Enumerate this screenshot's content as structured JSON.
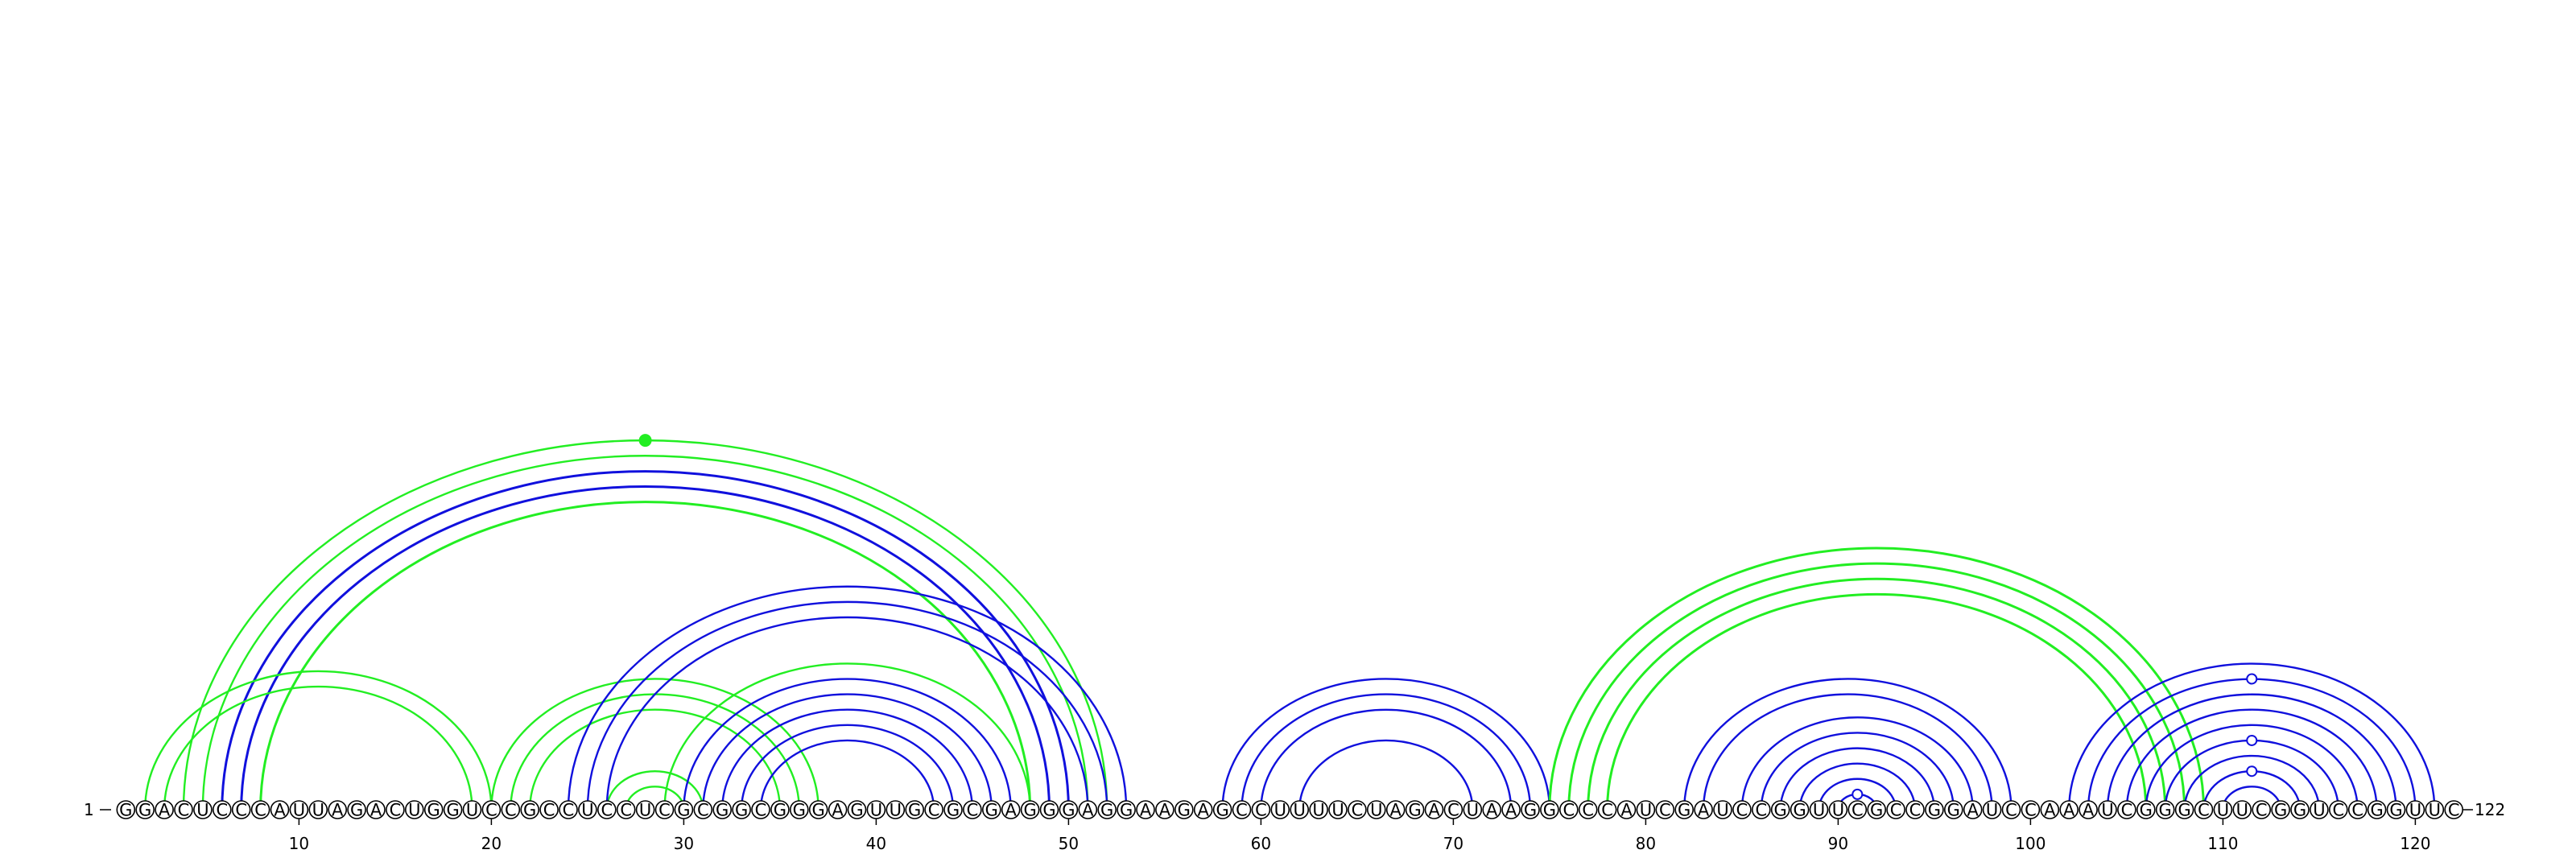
{
  "diagram": {
    "sequence": "GGACUCCCAUUAGACUGGUCCGCCUCCUCGCGGCGGGAGUUGCGCGAGGGAGGAAGAGCCUUUUCUAGACUAAGGCCCAUCGAUCCGGUUCGCCGGAUCCAAAUCGGGCUUCGGUCCGGUUC",
    "start_label": "1",
    "end_label": "122",
    "ticks": [
      "10",
      "20",
      "30",
      "40",
      "50",
      "60",
      "70",
      "80",
      "90",
      "100",
      "110",
      "120"
    ],
    "colors": {
      "green": "#22ee22",
      "blue": "#1010dd"
    },
    "arcs": [
      {
        "i": 4,
        "j": 52,
        "color": "green",
        "w": 2.4
      },
      {
        "i": 5,
        "j": 51,
        "color": "green",
        "w": 2.4
      },
      {
        "i": 6,
        "j": 50,
        "color": "blue",
        "w": 3
      },
      {
        "i": 7,
        "j": 49,
        "color": "blue",
        "w": 3
      },
      {
        "i": 8,
        "j": 48,
        "color": "green",
        "w": 3
      },
      {
        "i": 2,
        "j": 20,
        "color": "green",
        "w": 2.4
      },
      {
        "i": 3,
        "j": 19,
        "color": "green",
        "w": 2.4
      },
      {
        "i": 20,
        "j": 37,
        "color": "green",
        "w": 2.4
      },
      {
        "i": 21,
        "j": 36,
        "color": "green",
        "w": 2.4
      },
      {
        "i": 22,
        "j": 35,
        "color": "green",
        "w": 2.4
      },
      {
        "i": 26,
        "j": 31,
        "color": "green",
        "w": 2.4
      },
      {
        "i": 27,
        "j": 30,
        "color": "green",
        "w": 2.4
      },
      {
        "i": 24,
        "j": 53,
        "color": "blue",
        "w": 2.4
      },
      {
        "i": 25,
        "j": 52,
        "color": "blue",
        "w": 2.4
      },
      {
        "i": 26,
        "j": 51,
        "color": "blue",
        "w": 2.4
      },
      {
        "i": 29,
        "j": 48,
        "color": "green",
        "w": 2.4
      },
      {
        "i": 30,
        "j": 47,
        "color": "blue",
        "w": 2.4
      },
      {
        "i": 31,
        "j": 46,
        "color": "blue",
        "w": 2.4
      },
      {
        "i": 32,
        "j": 45,
        "color": "blue",
        "w": 2.4
      },
      {
        "i": 33,
        "j": 44,
        "color": "blue",
        "w": 2.4
      },
      {
        "i": 34,
        "j": 43,
        "color": "blue",
        "w": 2.4
      },
      {
        "i": 58,
        "j": 75,
        "color": "blue",
        "w": 2.4
      },
      {
        "i": 59,
        "j": 74,
        "color": "blue",
        "w": 2.4
      },
      {
        "i": 60,
        "j": 73,
        "color": "blue",
        "w": 2.4
      },
      {
        "i": 62,
        "j": 71,
        "color": "blue",
        "w": 2.4
      },
      {
        "i": 75,
        "j": 109,
        "color": "green",
        "w": 3
      },
      {
        "i": 76,
        "j": 108,
        "color": "green",
        "w": 3
      },
      {
        "i": 77,
        "j": 107,
        "color": "green",
        "w": 3
      },
      {
        "i": 78,
        "j": 106,
        "color": "green",
        "w": 3
      },
      {
        "i": 82,
        "j": 99,
        "color": "blue",
        "w": 2.4
      },
      {
        "i": 83,
        "j": 98,
        "color": "blue",
        "w": 2.4
      },
      {
        "i": 85,
        "j": 97,
        "color": "blue",
        "w": 2.4
      },
      {
        "i": 86,
        "j": 96,
        "color": "blue",
        "w": 2.4
      },
      {
        "i": 87,
        "j": 95,
        "color": "blue",
        "w": 2.4
      },
      {
        "i": 88,
        "j": 94,
        "color": "blue",
        "w": 2.4
      },
      {
        "i": 89,
        "j": 93,
        "color": "blue",
        "w": 2.4
      },
      {
        "i": 90,
        "j": 92,
        "color": "blue",
        "w": 2.4
      },
      {
        "i": 102,
        "j": 121,
        "color": "blue",
        "w": 2.4
      },
      {
        "i": 103,
        "j": 120,
        "color": "blue",
        "w": 2.4
      },
      {
        "i": 104,
        "j": 119,
        "color": "blue",
        "w": 2.4
      },
      {
        "i": 105,
        "j": 118,
        "color": "blue",
        "w": 2.4
      },
      {
        "i": 106,
        "j": 117,
        "color": "blue",
        "w": 2.4
      },
      {
        "i": 107,
        "j": 116,
        "color": "blue",
        "w": 2.4
      },
      {
        "i": 108,
        "j": 115,
        "color": "blue",
        "w": 2.4
      },
      {
        "i": 109,
        "j": 114,
        "color": "blue",
        "w": 2.4
      },
      {
        "i": 110,
        "j": 113,
        "color": "blue",
        "w": 2.4
      }
    ],
    "markers": [
      {
        "i": 4,
        "j": 52,
        "color": "green",
        "filled": true
      },
      {
        "i": 90,
        "j": 92,
        "color": "blue",
        "filled": false
      },
      {
        "i": 103,
        "j": 120,
        "color": "blue",
        "filled": false
      },
      {
        "i": 107,
        "j": 116,
        "color": "blue",
        "filled": false
      },
      {
        "i": 109,
        "j": 114,
        "color": "blue",
        "filled": false
      }
    ]
  }
}
